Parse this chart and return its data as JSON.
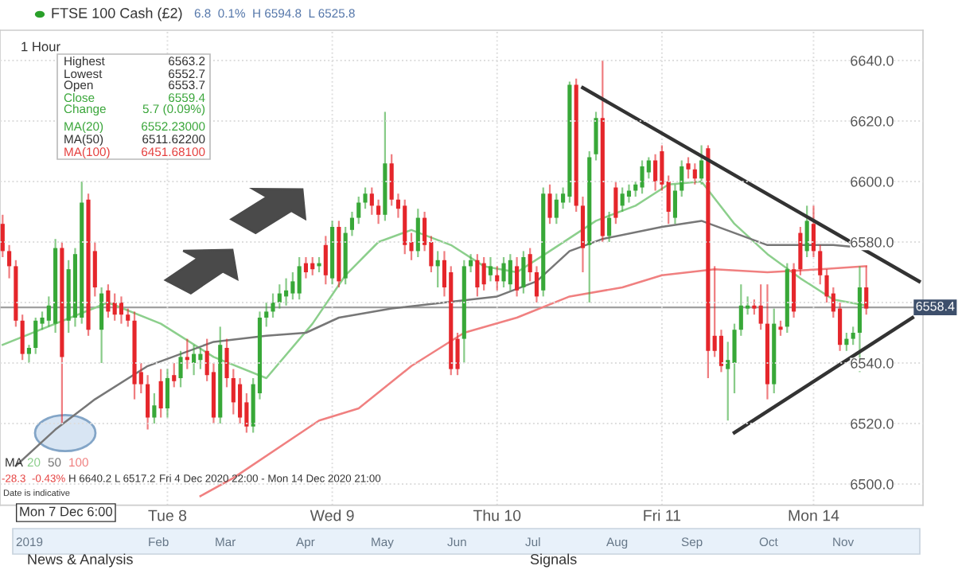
{
  "chart_data": {
    "type": "candlestick",
    "title": "FTSE 100 Cash (£2)",
    "subtitle": "6.8  0.1%  H 6594.8  L 6525.8",
    "categories": [
      null,
      null,
      null,
      null,
      null,
      null,
      null,
      null,
      null,
      null,
      null,
      null,
      null,
      null,
      null,
      null,
      null,
      null,
      null,
      null,
      null,
      null,
      null,
      null,
      null,
      "Tue 8",
      null,
      null,
      null,
      null,
      null,
      null,
      null,
      null,
      null,
      null,
      null,
      null,
      null,
      null,
      null,
      null,
      null,
      null,
      null,
      null,
      null,
      null,
      null,
      null,
      "Wed 9",
      null,
      null,
      null,
      null,
      null,
      null,
      null,
      null,
      null,
      null,
      null,
      null,
      null,
      null,
      null,
      null,
      null,
      null,
      null,
      null,
      null,
      null,
      null,
      null,
      "Thu 10",
      null,
      null,
      null,
      null,
      null,
      null,
      null,
      null,
      null,
      null,
      null,
      null,
      null,
      null,
      null,
      null,
      null,
      null,
      null,
      null,
      null,
      null,
      null,
      null,
      "Fri 11",
      null,
      null,
      null,
      null,
      null,
      null,
      null,
      null,
      null,
      null,
      null,
      null,
      null,
      null,
      null,
      null,
      null,
      null,
      null,
      null,
      null,
      null,
      "Mon 14",
      null,
      null,
      null,
      null,
      null,
      null,
      null,
      null,
      null,
      null,
      null,
      null,
      null,
      null,
      null,
      null
    ],
    "ohlc": [
      [
        6586,
        6589,
        6575,
        6577
      ],
      [
        6577,
        6579,
        6568,
        6572
      ],
      [
        6572,
        6574,
        6552,
        6554
      ],
      [
        6554,
        6556,
        6541,
        6543
      ],
      [
        6543,
        6546,
        6540,
        6545
      ],
      [
        6545,
        6555,
        6543,
        6554
      ],
      [
        6553,
        6557,
        6551,
        6555
      ],
      [
        6554,
        6562,
        6552,
        6559
      ],
      [
        6553,
        6581,
        6550,
        6578
      ],
      [
        6578,
        6580,
        6520,
        6542
      ],
      [
        6554,
        6574,
        6550,
        6571
      ],
      [
        6555,
        6578,
        6552,
        6576
      ],
      [
        6555,
        6600,
        6553,
        6593
      ],
      [
        6594,
        6596,
        6549,
        6551
      ],
      [
        6577,
        6580,
        6562,
        6565
      ],
      [
        6551,
        6565,
        6540,
        6563
      ],
      [
        6564,
        6566,
        6555,
        6557
      ],
      [
        6560,
        6563,
        6554,
        6556
      ],
      [
        6560,
        6562,
        6553,
        6556
      ],
      [
        6556,
        6558,
        6552,
        6554
      ],
      [
        6554,
        6557,
        6528,
        6533
      ],
      [
        6537,
        6540,
        6530,
        6533
      ],
      [
        6533,
        6536,
        6518,
        6522
      ],
      [
        6522,
        6530,
        6520,
        6526
      ],
      [
        6534,
        6538,
        6522,
        6525
      ],
      [
        6525,
        6538,
        6522,
        6535
      ],
      [
        6536,
        6540,
        6532,
        6534
      ],
      [
        6535,
        6544,
        6532,
        6542
      ],
      [
        6542,
        6548,
        6538,
        6541
      ],
      [
        6540,
        6546,
        6536,
        6543
      ],
      [
        6541,
        6545,
        6538,
        6543
      ],
      [
        6544,
        6548,
        6534,
        6536
      ],
      [
        6537,
        6540,
        6520,
        6522
      ],
      [
        6522,
        6552,
        6520,
        6546
      ],
      [
        6545,
        6548,
        6532,
        6535
      ],
      [
        6535,
        6538,
        6523,
        6527
      ],
      [
        6533,
        6535,
        6520,
        6522
      ],
      [
        6527,
        6530,
        6517,
        6519
      ],
      [
        6519,
        6535,
        6517,
        6533
      ],
      [
        6530,
        6557,
        6528,
        6555
      ],
      [
        6555,
        6560,
        6552,
        6557
      ],
      [
        6557,
        6563,
        6555,
        6560
      ],
      [
        6560,
        6566,
        6558,
        6563
      ],
      [
        6562,
        6568,
        6559,
        6564
      ],
      [
        6563,
        6570,
        6561,
        6567
      ],
      [
        6563,
        6575,
        6561,
        6572
      ],
      [
        6573,
        6575,
        6568,
        6570
      ],
      [
        6573,
        6575,
        6569,
        6571
      ],
      [
        6572,
        6575,
        6570,
        6573
      ],
      [
        6579,
        6582,
        6566,
        6569
      ],
      [
        6568,
        6587,
        6566,
        6585
      ],
      [
        6585,
        6587,
        6565,
        6567
      ],
      [
        6568,
        6585,
        6566,
        6583
      ],
      [
        6584,
        6590,
        6582,
        6588
      ],
      [
        6588,
        6595,
        6586,
        6593
      ],
      [
        6593,
        6598,
        6591,
        6596
      ],
      [
        6596,
        6598,
        6589,
        6592
      ],
      [
        6592,
        6594,
        6586,
        6589
      ],
      [
        6589,
        6623,
        6587,
        6606
      ],
      [
        6606,
        6609,
        6592,
        6594
      ],
      [
        6594,
        6596,
        6588,
        6591
      ],
      [
        6592,
        6594,
        6576,
        6579
      ],
      [
        6580,
        6583,
        6574,
        6577
      ],
      [
        6577,
        6591,
        6575,
        6588
      ],
      [
        6588,
        6590,
        6577,
        6579
      ],
      [
        6580,
        6582,
        6570,
        6572
      ],
      [
        6572,
        6577,
        6565,
        6574
      ],
      [
        6574,
        6577,
        6562,
        6565
      ],
      [
        6570,
        6572,
        6536,
        6538
      ],
      [
        6548,
        6550,
        6536,
        6538
      ],
      [
        6548,
        6574,
        6540,
        6572
      ],
      [
        6572,
        6576,
        6570,
        6574
      ],
      [
        6574,
        6576,
        6562,
        6565
      ],
      [
        6573,
        6575,
        6564,
        6566
      ],
      [
        6569,
        6575,
        6567,
        6572
      ],
      [
        6569,
        6572,
        6564,
        6567
      ],
      [
        6567,
        6575,
        6565,
        6573
      ],
      [
        6566,
        6576,
        6564,
        6574
      ],
      [
        6572,
        6575,
        6562,
        6564
      ],
      [
        6565,
        6577,
        6563,
        6575
      ],
      [
        6576,
        6578,
        6567,
        6570
      ],
      [
        6570,
        6572,
        6560,
        6562
      ],
      [
        6564,
        6598,
        6562,
        6596
      ],
      [
        6596,
        6599,
        6586,
        6588
      ],
      [
        6588,
        6596,
        6586,
        6594
      ],
      [
        6593,
        6598,
        6591,
        6596
      ],
      [
        6595,
        6633,
        6593,
        6632
      ],
      [
        6632,
        6634,
        6590,
        6592
      ],
      [
        6592,
        6595,
        6570,
        6578
      ],
      [
        6579,
        6610,
        6560,
        6608
      ],
      [
        6609,
        6623,
        6607,
        6621
      ],
      [
        6621,
        6640,
        6580,
        6582
      ],
      [
        6582,
        6590,
        6580,
        6588
      ],
      [
        6598,
        6600,
        6586,
        6588
      ],
      [
        6592,
        6598,
        6590,
        6596
      ],
      [
        6595,
        6599,
        6593,
        6597
      ],
      [
        6597,
        6600,
        6595,
        6599
      ],
      [
        6598,
        6607,
        6596,
        6605
      ],
      [
        6603,
        6608,
        6601,
        6607
      ],
      [
        6607,
        6609,
        6597,
        6600
      ],
      [
        6610,
        6612,
        6597,
        6599
      ],
      [
        6600,
        6602,
        6586,
        6590
      ],
      [
        6588,
        6599,
        6586,
        6597
      ],
      [
        6597,
        6607,
        6595,
        6605
      ],
      [
        6606,
        6608,
        6601,
        6604
      ],
      [
        6604,
        6606,
        6599,
        6601
      ],
      [
        6601,
        6612,
        6599,
        6607
      ],
      [
        6611,
        6612,
        6535,
        6544
      ],
      [
        6549,
        6572,
        6542,
        6544
      ],
      [
        6549,
        6551,
        6537,
        6539
      ],
      [
        6538,
        6547,
        6521,
        6541
      ],
      [
        6540,
        6553,
        6530,
        6551
      ],
      [
        6551,
        6566,
        6549,
        6559
      ],
      [
        6558,
        6562,
        6556,
        6559
      ],
      [
        6559,
        6561,
        6556,
        6558
      ],
      [
        6559,
        6566,
        6551,
        6553
      ],
      [
        6553,
        6566,
        6528,
        6533
      ],
      [
        6533,
        6558,
        6530,
        6553
      ],
      [
        6552,
        6554,
        6549,
        6551
      ],
      [
        6552,
        6573,
        6550,
        6571
      ],
      [
        6571,
        6573,
        6555,
        6557
      ],
      [
        6583,
        6585,
        6569,
        6571
      ],
      [
        6577,
        6592,
        6575,
        6587
      ],
      [
        6586,
        6592,
        6575,
        6577
      ],
      [
        6577,
        6579,
        6566,
        6569
      ],
      [
        6569,
        6571,
        6560,
        6562
      ],
      [
        6563,
        6565,
        6555,
        6557
      ],
      [
        6558,
        6560,
        6544,
        6546
      ],
      [
        6546,
        6550,
        6544,
        6548
      ],
      [
        6548,
        6552,
        6546,
        6550
      ],
      [
        6550,
        6572,
        6537,
        6565
      ],
      [
        6565,
        6572,
        6556,
        6558
      ],
      null,
      null,
      null,
      null,
      null,
      null,
      null,
      null
    ],
    "colors": [
      "#e5262b",
      "#e5262b",
      "#e5262b",
      "#e5262b",
      "#38a838",
      "#38a838",
      "#38a838",
      "#38a838",
      "#38a838",
      "#e5262b",
      "#38a838",
      "#38a838",
      "#38a838",
      "#e5262b",
      "#e5262b",
      "#38a838",
      "#e5262b",
      "#e5262b",
      "#e5262b",
      "#e5262b",
      "#e5262b",
      "#e5262b",
      "#e5262b",
      "#38a838",
      "#e5262b",
      "#38a838",
      "#e5262b",
      "#38a838",
      "#e5262b",
      "#38a838",
      "#38a838",
      "#e5262b",
      "#e5262b",
      "#38a838",
      "#e5262b",
      "#e5262b",
      "#e5262b",
      "#e5262b",
      "#38a838",
      "#38a838",
      "#38a838",
      "#38a838",
      "#38a838",
      "#38a838",
      "#38a838",
      "#38a838",
      "#e5262b",
      "#e5262b",
      "#38a838",
      "#e5262b",
      "#38a838",
      "#e5262b",
      "#38a838",
      "#38a838",
      "#38a838",
      "#38a838",
      "#e5262b",
      "#e5262b",
      "#38a838",
      "#e5262b",
      "#e5262b",
      "#e5262b",
      "#e5262b",
      "#38a838",
      "#e5262b",
      "#e5262b",
      "#38a838",
      "#e5262b",
      "#e5262b",
      "#e5262b",
      "#38a838",
      "#38a838",
      "#e5262b",
      "#e5262b",
      "#38a838",
      "#e5262b",
      "#38a838",
      "#38a838",
      "#e5262b",
      "#38a838",
      "#e5262b",
      "#e5262b",
      "#38a838",
      "#e5262b",
      "#38a838",
      "#38a838",
      "#38a838",
      "#e5262b",
      "#e5262b",
      "#38a838",
      "#38a838",
      "#e5262b",
      "#38a838",
      "#e5262b",
      "#38a838",
      "#38a838",
      "#38a838",
      "#38a838",
      "#38a838",
      "#e5262b",
      "#e5262b",
      "#e5262b",
      "#38a838",
      "#38a838",
      "#e5262b",
      "#e5262b",
      "#38a838",
      "#e5262b",
      "#e5262b",
      "#e5262b",
      "#38a838",
      "#38a838",
      "#38a838",
      "#38a838",
      "#e5262b",
      "#e5262b",
      "#e5262b",
      "#38a838",
      "#e5262b",
      "#38a838",
      "#e5262b",
      "#e5262b",
      "#38a838",
      "#e5262b",
      "#e5262b",
      "#e5262b",
      "#e5262b",
      "#e5262b",
      "#38a838",
      "#38a838",
      "#38a838",
      "#e5262b",
      null,
      null,
      null,
      null,
      null,
      null,
      null,
      null
    ],
    "ylim": [
      6493,
      6650
    ],
    "yticks": [
      {
        "value": 6640,
        "label": "6640.0"
      },
      {
        "value": 6620,
        "label": "6620.0"
      },
      {
        "value": 6600,
        "label": "6600.0"
      },
      {
        "value": 6580,
        "label": "6580.0"
      },
      {
        "value": 6560,
        "label": null
      },
      {
        "value": 6540,
        "label": "6540.0"
      },
      {
        "value": 6520,
        "label": "6520.0"
      },
      {
        "value": 6500,
        "label": "6500.0"
      }
    ],
    "grid": true,
    "legend": "bottom left",
    "ref_lines": [
      {
        "axis": "y",
        "value": 6558.4,
        "label": "6558.4",
        "color": "#a0a0a0"
      }
    ],
    "series": [
      {
        "type": "line",
        "name": "20",
        "color": "#8ccf8c",
        "values": [
          6546,
          null,
          null,
          null,
          null,
          null,
          null,
          null,
          null,
          null,
          null,
          null,
          null,
          null,
          null,
          null,
          6560,
          null,
          null,
          null,
          null,
          null,
          null,
          null,
          6553,
          null,
          null,
          null,
          null,
          null,
          null,
          null,
          6542,
          null,
          null,
          null,
          null,
          null,
          null,
          null,
          6535,
          null,
          null,
          null,
          null,
          null,
          null,
          6553,
          null,
          null,
          null,
          null,
          6569,
          null,
          null,
          null,
          null,
          6580,
          null,
          null,
          null,
          null,
          6584,
          null,
          null,
          null,
          null,
          null,
          6579,
          null,
          null,
          null,
          null,
          6572,
          null,
          null,
          null,
          null,
          6570,
          null,
          null,
          null,
          null,
          6577,
          null,
          null,
          null,
          null,
          null,
          null,
          6587,
          null,
          null,
          null,
          null,
          null,
          6592,
          null,
          null,
          null,
          null,
          6599,
          null,
          null,
          null,
          null,
          6600,
          null,
          null,
          null,
          null,
          6586,
          null,
          null,
          null,
          null,
          6576,
          null,
          null,
          null,
          null,
          6568,
          null,
          null,
          null,
          null,
          6561,
          null,
          null,
          null,
          null,
          6559,
          null,
          null,
          null,
          null,
          null,
          null,
          null,
          null
        ]
      },
      {
        "type": "line",
        "name": "50",
        "color": "#777777",
        "values": [
          null,
          null,
          6506,
          null,
          null,
          null,
          null,
          null,
          6518,
          null,
          null,
          null,
          null,
          null,
          6528,
          null,
          null,
          null,
          null,
          null,
          null,
          null,
          6539,
          null,
          null,
          null,
          null,
          null,
          null,
          null,
          null,
          null,
          6547,
          null,
          null,
          null,
          null,
          null,
          null,
          null,
          6549,
          null,
          null,
          null,
          null,
          null,
          6550,
          null,
          null,
          null,
          null,
          6555,
          null,
          null,
          null,
          null,
          null,
          null,
          null,
          6558,
          null,
          null,
          null,
          null,
          null,
          null,
          null,
          6560,
          null,
          null,
          null,
          null,
          null,
          null,
          null,
          6562,
          null,
          null,
          null,
          null,
          null,
          6567,
          null,
          null,
          null,
          null,
          6577,
          null,
          null,
          null,
          null,
          6581,
          null,
          null,
          null,
          null,
          null,
          null,
          null,
          null,
          6585,
          null,
          null,
          null,
          null,
          null,
          6587,
          null,
          null,
          null,
          null,
          null,
          null,
          null,
          null,
          null,
          6579,
          null,
          null,
          null,
          null,
          null,
          null,
          null,
          null,
          null,
          6579,
          null,
          null,
          null,
          null,
          6578,
          null,
          null,
          null,
          null,
          null,
          null,
          null,
          null
        ]
      },
      {
        "type": "line",
        "name": "100",
        "color": "#f08080",
        "values": [
          null,
          null,
          null,
          null,
          null,
          null,
          null,
          null,
          null,
          null,
          null,
          null,
          null,
          null,
          null,
          null,
          null,
          null,
          null,
          null,
          null,
          null,
          null,
          null,
          null,
          null,
          null,
          null,
          null,
          null,
          6496,
          null,
          null,
          null,
          null,
          6502,
          null,
          null,
          null,
          null,
          null,
          null,
          null,
          null,
          null,
          null,
          null,
          null,
          6521,
          null,
          null,
          null,
          null,
          null,
          6525,
          null,
          null,
          null,
          null,
          null,
          null,
          null,
          6539,
          null,
          null,
          null,
          null,
          null,
          null,
          null,
          6550,
          null,
          null,
          null,
          null,
          null,
          null,
          null,
          6555,
          null,
          null,
          null,
          null,
          null,
          null,
          null,
          6562,
          null,
          null,
          null,
          null,
          null,
          null,
          null,
          6565,
          null,
          null,
          null,
          null,
          null,
          6569,
          null,
          null,
          null,
          null,
          null,
          null,
          null,
          6571,
          null,
          null,
          null,
          null,
          null,
          null,
          null,
          6570,
          null,
          null,
          null,
          null,
          null,
          null,
          null,
          6571,
          null,
          null,
          null,
          null,
          null,
          null,
          6572,
          null,
          null,
          null,
          null,
          null,
          null,
          null,
          null
        ]
      },
      {
        "type": "line",
        "color": "#333333",
        "values": [
          null,
          null,
          null,
          null,
          null,
          null,
          null,
          null,
          null,
          null,
          null,
          null,
          null,
          null,
          null,
          null,
          null,
          null,
          null,
          null,
          null,
          null,
          null,
          null,
          null,
          null,
          null,
          null,
          null,
          null,
          null,
          null,
          null,
          null,
          null,
          null,
          null,
          null,
          null,
          null,
          null,
          null,
          null,
          null,
          null,
          null,
          null,
          null,
          null,
          null,
          null,
          null,
          null,
          null,
          null,
          null,
          null,
          null,
          null,
          null,
          null,
          null,
          null,
          null,
          null,
          null,
          null,
          null,
          null,
          null,
          null,
          null,
          null,
          null,
          null,
          null,
          null,
          null,
          null,
          null,
          null,
          null,
          null,
          null,
          null,
          null,
          null,
          null,
          6631,
          null,
          null,
          null,
          null,
          null,
          null,
          null,
          null,
          null,
          null,
          null,
          null,
          null,
          null,
          null,
          null,
          null,
          null,
          null,
          null,
          null,
          null,
          null,
          null,
          null,
          null,
          null,
          null,
          null,
          null,
          null,
          null,
          null,
          null,
          null,
          null,
          null,
          null,
          null,
          null,
          null,
          null,
          null,
          null,
          null,
          null,
          null,
          null,
          null,
          null,
          6567
        ]
      },
      {
        "type": "line",
        "color": "#333333",
        "values": [
          null,
          null,
          null,
          null,
          null,
          null,
          null,
          null,
          null,
          null,
          null,
          null,
          null,
          null,
          null,
          null,
          null,
          null,
          null,
          null,
          null,
          null,
          null,
          null,
          null,
          null,
          null,
          null,
          null,
          null,
          null,
          null,
          null,
          null,
          null,
          null,
          null,
          null,
          null,
          null,
          null,
          null,
          null,
          null,
          null,
          null,
          null,
          null,
          null,
          null,
          null,
          null,
          null,
          null,
          null,
          null,
          null,
          null,
          null,
          null,
          null,
          null,
          null,
          null,
          null,
          null,
          null,
          null,
          null,
          null,
          null,
          null,
          null,
          null,
          null,
          null,
          null,
          null,
          null,
          null,
          null,
          null,
          null,
          null,
          null,
          null,
          null,
          null,
          null,
          null,
          null,
          null,
          null,
          null,
          null,
          null,
          null,
          null,
          null,
          null,
          null,
          null,
          null,
          null,
          null,
          null,
          null,
          null,
          null,
          null,
          null,
          6517,
          null,
          null,
          null,
          null,
          null,
          null,
          null,
          null,
          null,
          null,
          null,
          null,
          null,
          null,
          null,
          null,
          null,
          null,
          null,
          null,
          null,
          null,
          null,
          null,
          null,
          null,
          6555,
          null
        ]
      }
    ],
    "annotations": [
      "1 Hour",
      "Highest",
      "6563.2",
      "Lowest",
      "6552.7",
      "Open",
      "6553.7",
      "Close",
      "6559.4",
      "Change",
      "5.7 (0.09%)",
      "MA(20)",
      "6552.23000",
      "MA(50)",
      "6511.62200",
      "MA(100)",
      "6451.68100",
      "MA",
      "-28.3",
      "-0.43%",
      "H 6640.2",
      "L 6517.2",
      "Fri 4 Dec 2020 22:00 - Mon 14 Dec 2020 21:00",
      "Date is indicative",
      "Mon 7 Dec 6:00",
      "2019",
      "Feb",
      "Mar",
      "Apr",
      "May",
      "Jun",
      "Jul",
      "Aug",
      "Sep",
      "Oct",
      "Nov",
      "News & Analysis",
      "Signals"
    ]
  }
}
